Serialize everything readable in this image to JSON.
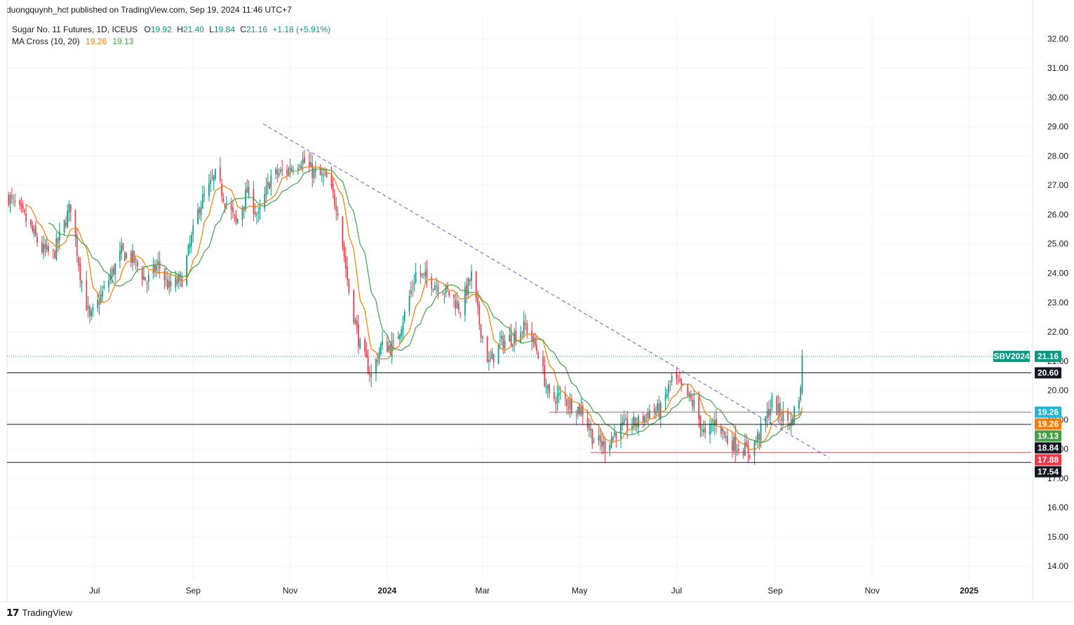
{
  "publisher": "duongquynh_hct published on TradingView.com, Sep 19, 2024 11:46 UTC+7",
  "legend": {
    "symbol": "Sugar No. 11 Futures, 1D, ICEUS",
    "open_label": "O",
    "open": "19.92",
    "high_label": "H",
    "high": "21.40",
    "low_label": "L",
    "low": "19.84",
    "close_label": "C",
    "close": "21.16",
    "change": "+1.18 (+5.91%)",
    "ma_label": "MA Cross (10, 20)",
    "ma10": "19.26",
    "ma20": "19.13"
  },
  "footer": {
    "logo": "𝟭𝟳",
    "brand": "TradingView"
  },
  "colors": {
    "up": "#089981",
    "down": "#f23645",
    "ma10": "#f57c00",
    "ma20": "#43a047",
    "trendline": "#5b5bd6",
    "grid": "#f0f3fa",
    "price_line": "#089981"
  },
  "chart_data": {
    "type": "candlestick",
    "y_axis": {
      "ticks": [
        "32.00",
        "31.00",
        "30.00",
        "29.00",
        "28.00",
        "27.00",
        "26.00",
        "25.00",
        "24.00",
        "23.00",
        "22.00",
        "21.00",
        "20.00",
        "19.00",
        "18.00",
        "17.00",
        "16.00",
        "15.00",
        "14.00"
      ],
      "range": [
        13.5,
        32.8
      ]
    },
    "x_axis": {
      "ticks": [
        {
          "label": "Jul",
          "date": "2023-07-01",
          "bold": false
        },
        {
          "label": "Sep",
          "date": "2023-09-01",
          "bold": false
        },
        {
          "label": "Nov",
          "date": "2023-11-01",
          "bold": false
        },
        {
          "label": "2024",
          "date": "2024-01-01",
          "bold": true
        },
        {
          "label": "Mar",
          "date": "2024-03-01",
          "bold": false
        },
        {
          "label": "May",
          "date": "2024-05-01",
          "bold": false
        },
        {
          "label": "Jul",
          "date": "2024-07-01",
          "bold": false
        },
        {
          "label": "Sep",
          "date": "2024-09-01",
          "bold": false
        },
        {
          "label": "Nov",
          "date": "2024-11-01",
          "bold": false
        },
        {
          "label": "2025",
          "date": "2025-01-01",
          "bold": true
        }
      ],
      "range": [
        "2023-05-07",
        "2025-02-09"
      ]
    },
    "grid": true,
    "close_keypoints": [
      [
        "2023-05-08",
        26.6
      ],
      [
        "2023-05-18",
        25.9
      ],
      [
        "2023-05-29",
        24.8
      ],
      [
        "2023-06-05",
        24.6
      ],
      [
        "2023-06-16",
        26.3
      ],
      [
        "2023-06-22",
        24.0
      ],
      [
        "2023-06-28",
        22.4
      ],
      [
        "2023-07-05",
        23.2
      ],
      [
        "2023-07-18",
        24.7
      ],
      [
        "2023-07-25",
        24.5
      ],
      [
        "2023-08-03",
        23.7
      ],
      [
        "2023-08-10",
        24.3
      ],
      [
        "2023-08-17",
        23.5
      ],
      [
        "2023-08-25",
        23.8
      ],
      [
        "2023-09-05",
        26.3
      ],
      [
        "2023-09-15",
        27.3
      ],
      [
        "2023-09-22",
        26.4
      ],
      [
        "2023-09-28",
        25.7
      ],
      [
        "2023-10-05",
        26.8
      ],
      [
        "2023-10-12",
        25.9
      ],
      [
        "2023-10-20",
        27.3
      ],
      [
        "2023-10-30",
        27.5
      ],
      [
        "2023-11-08",
        27.9
      ],
      [
        "2023-11-16",
        27.4
      ],
      [
        "2023-11-24",
        27.2
      ],
      [
        "2023-12-01",
        26.2
      ],
      [
        "2023-12-08",
        23.4
      ],
      [
        "2023-12-15",
        21.5
      ],
      [
        "2023-12-22",
        20.5
      ],
      [
        "2023-12-28",
        21.5
      ],
      [
        "2024-01-05",
        21.5
      ],
      [
        "2024-01-12",
        22.6
      ],
      [
        "2024-01-19",
        24.0
      ],
      [
        "2024-01-26",
        23.8
      ],
      [
        "2024-02-02",
        23.6
      ],
      [
        "2024-02-09",
        23.3
      ],
      [
        "2024-02-16",
        22.8
      ],
      [
        "2024-02-23",
        23.9
      ],
      [
        "2024-02-28",
        22.3
      ],
      [
        "2024-03-05",
        20.9
      ],
      [
        "2024-03-12",
        21.6
      ],
      [
        "2024-03-19",
        21.8
      ],
      [
        "2024-03-28",
        22.2
      ],
      [
        "2024-04-05",
        21.3
      ],
      [
        "2024-04-12",
        19.7
      ],
      [
        "2024-04-19",
        19.8
      ],
      [
        "2024-04-26",
        19.5
      ],
      [
        "2024-05-03",
        19.3
      ],
      [
        "2024-05-10",
        18.3
      ],
      [
        "2024-05-17",
        18.1
      ],
      [
        "2024-05-24",
        18.6
      ],
      [
        "2024-05-31",
        18.8
      ],
      [
        "2024-06-07",
        18.9
      ],
      [
        "2024-06-14",
        19.3
      ],
      [
        "2024-06-21",
        19.3
      ],
      [
        "2024-06-28",
        20.4
      ],
      [
        "2024-07-05",
        20.0
      ],
      [
        "2024-07-12",
        19.5
      ],
      [
        "2024-07-19",
        18.4
      ],
      [
        "2024-07-26",
        19.0
      ],
      [
        "2024-08-02",
        18.3
      ],
      [
        "2024-08-09",
        18.1
      ],
      [
        "2024-08-16",
        17.9
      ],
      [
        "2024-08-23",
        18.6
      ],
      [
        "2024-08-30",
        19.6
      ],
      [
        "2024-09-04",
        19.2
      ],
      [
        "2024-09-11",
        18.9
      ],
      [
        "2024-09-17",
        19.98
      ],
      [
        "2024-09-18",
        21.16
      ]
    ],
    "last_bar": {
      "date": "2024-09-18",
      "open": 19.92,
      "high": 21.4,
      "low": 19.84,
      "close": 21.16
    },
    "trendline": {
      "from": [
        "2023-10-15",
        29.1
      ],
      "to": [
        "2024-10-05",
        17.7
      ],
      "style": "dashed"
    },
    "horizontal_lines": [
      {
        "value": 20.6,
        "color": "#131722"
      },
      {
        "value": 18.84,
        "color": "#131722"
      },
      {
        "value": 17.54,
        "color": "#131722"
      }
    ],
    "segments": [
      {
        "value": 19.26,
        "from": "2024-04-12",
        "color": "#22ab94"
      },
      {
        "value": 17.88,
        "from": "2024-05-08",
        "color": "#f23645"
      }
    ],
    "price_labels": [
      {
        "text": "SBV2024",
        "value": 21.16,
        "bg": "#089981",
        "fg": "#ffffff",
        "kind": "name"
      },
      {
        "text": "21.16",
        "value": 21.16,
        "bg": "#089981",
        "fg": "#ffffff"
      },
      {
        "text": "20.60",
        "value": 20.6,
        "bg": "#131722",
        "fg": "#ffffff"
      },
      {
        "text": "19.26",
        "value": 19.26,
        "bg": "#22b5d6",
        "fg": "#ffffff",
        "offset": 0
      },
      {
        "text": "19.26",
        "value": 19.26,
        "bg": "#f57c00",
        "fg": "#ffffff",
        "offset": 1
      },
      {
        "text": "19.13",
        "value": 19.13,
        "bg": "#43a047",
        "fg": "#ffffff",
        "offset": 2
      },
      {
        "text": "18.84",
        "value": 18.84,
        "bg": "#131722",
        "fg": "#ffffff",
        "offset": 3
      },
      {
        "text": "17.88",
        "value": 17.88,
        "bg": "#f23645",
        "fg": "#ffffff",
        "offset": 4
      },
      {
        "text": "17.54",
        "value": 17.54,
        "bg": "#131722",
        "fg": "#ffffff",
        "offset": 5
      }
    ],
    "series": [
      {
        "name": "Sugar No. 11 Futures",
        "kind": "candles"
      },
      {
        "name": "MA 10",
        "period": 10,
        "color": "#f57c00"
      },
      {
        "name": "MA 20",
        "period": 20,
        "color": "#43a047"
      }
    ]
  }
}
